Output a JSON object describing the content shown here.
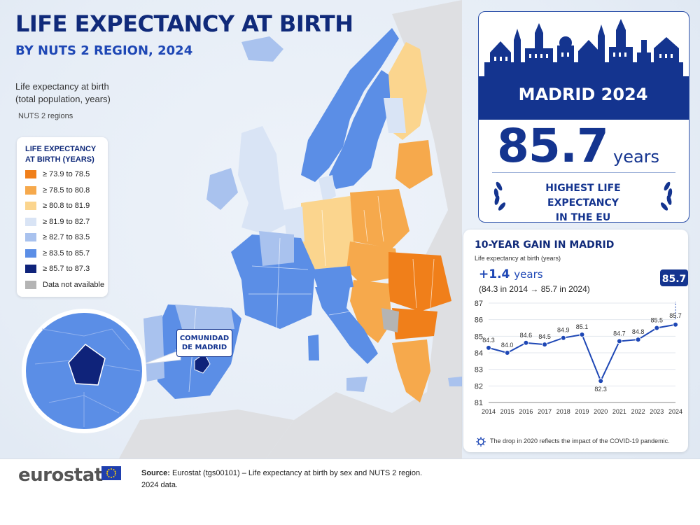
{
  "header": {
    "title": "LIFE EXPECTANCY AT BIRTH",
    "subtitle": "BY NUTS 2 REGION, 2024",
    "description_line1": "Life expectancy at birth",
    "description_line2": "(total population, years)",
    "regions_note": "NUTS 2 regions"
  },
  "legend": {
    "title": "LIFE EXPECTANCY AT BIRTH (YEARS)",
    "items": [
      {
        "label": "≥ 73.9 to 78.5",
        "color": "#f07f1a"
      },
      {
        "label": "≥ 78.5 to 80.8",
        "color": "#f6a94c"
      },
      {
        "label": "≥ 80.8 to 81.9",
        "color": "#fbd58e"
      },
      {
        "label": "≥ 81.9 to 82.7",
        "color": "#d9e4f5"
      },
      {
        "label": "≥ 82.7 to 83.5",
        "color": "#a9c2ee"
      },
      {
        "label": "≥ 83.5 to 85.7",
        "color": "#5b8ee6"
      },
      {
        "label": "≥ 85.7 to 87.3",
        "color": "#0f237a"
      },
      {
        "label": "Data not available",
        "color": "#b4b4b4"
      }
    ]
  },
  "map": {
    "callout_line1": "COMUNIDAD",
    "callout_line2": "DE MADRID"
  },
  "hero": {
    "banner": "MADRID 2024",
    "value": "85.7",
    "unit": "years",
    "award_line1": "HIGHEST LIFE EXPECTANCY",
    "award_line2": "IN THE EU"
  },
  "trend_panel": {
    "title": "10-YEAR GAIN IN MADRID",
    "subtitle": "Life expectancy at birth (years)",
    "gain_value": "+1.4",
    "gain_unit": "years",
    "gain_note": "(84.3 in 2014 → 85.7 in 2024)",
    "note": "The drop in 2020 reflects the impact of the COVID-19 pandemic."
  },
  "chart_data": {
    "type": "line",
    "title": "10-YEAR GAIN IN MADRID",
    "ylabel": "Life expectancy at birth (years)",
    "x": [
      "2014",
      "2015",
      "2016",
      "2017",
      "2018",
      "2019",
      "2020",
      "2021",
      "2022",
      "2023",
      "2024"
    ],
    "values": [
      84.3,
      84.0,
      84.6,
      84.5,
      84.9,
      85.1,
      82.3,
      84.7,
      84.8,
      85.5,
      85.7
    ],
    "data_labels": [
      "84.3",
      "84.0",
      "84.6",
      "84.5",
      "84.9",
      "85.1",
      "82.3",
      "84.7",
      "84.8",
      "85.5",
      "85.7"
    ],
    "yticks": [
      "81",
      "82",
      "83",
      "84",
      "85",
      "86",
      "87"
    ],
    "ylim": [
      81,
      87
    ],
    "grid": true,
    "highlight_label": "85.7",
    "line_color": "#1e47b5"
  },
  "footer": {
    "logo": "eurostat",
    "source_label": "Source:",
    "source_text": "Eurostat (tgs00101) – Life expectancy at birth by sex and NUTS 2 region.",
    "source_text2": "2024 data."
  }
}
